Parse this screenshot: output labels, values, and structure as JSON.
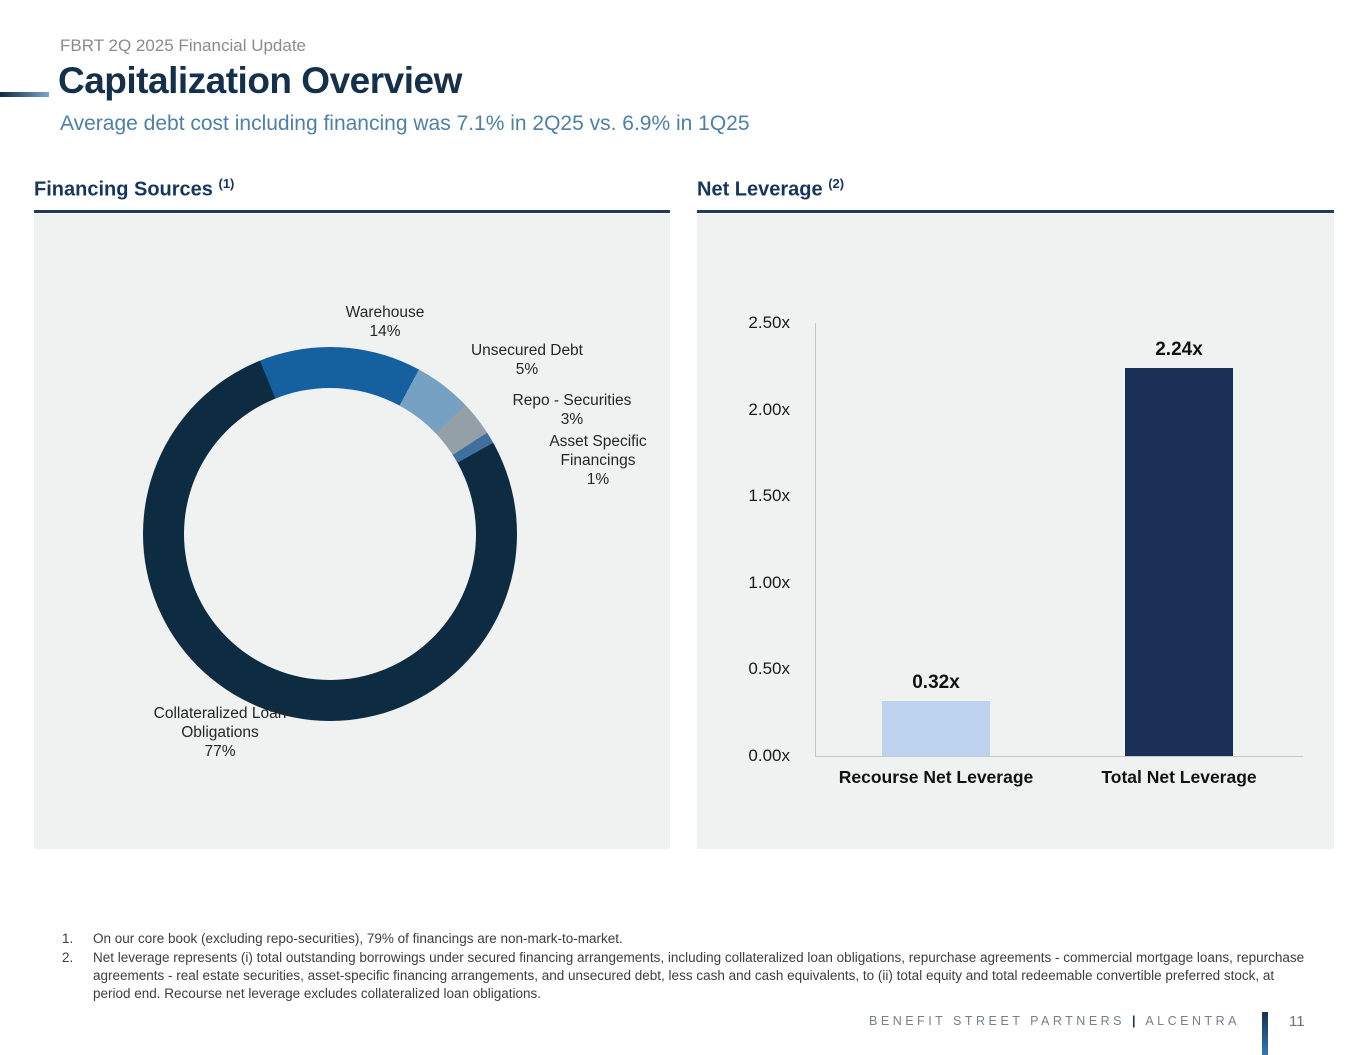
{
  "header": {
    "eyebrow": "FBRT 2Q 2025 Financial Update",
    "title": "Capitalization Overview",
    "subtitle": "Average debt cost including financing was 7.1% in 2Q25 vs. 6.9% in 1Q25"
  },
  "financing": {
    "heading": "Financing Sources",
    "footnote_ref": "(1)"
  },
  "leverage": {
    "heading": "Net Leverage",
    "footnote_ref": "(2)"
  },
  "chart_data": [
    {
      "type": "pie",
      "title": "Financing Sources",
      "donut": true,
      "rotation_deg": 338,
      "slices": [
        {
          "label": "Warehouse",
          "pct": 14,
          "pct_label": "14%",
          "color": "#1561a0"
        },
        {
          "label": "Unsecured Debt",
          "pct": 5,
          "pct_label": "5%",
          "color": "#76a1c2"
        },
        {
          "label": "Repo - Securities",
          "pct": 3,
          "pct_label": "3%",
          "color": "#93a0a7"
        },
        {
          "label": "Asset Specific Financings",
          "pct": 1,
          "pct_label": "1%",
          "color": "#3e6f9e"
        },
        {
          "label": "Collateralized Loan Obligations",
          "pct": 77,
          "pct_label": "77%",
          "color": "#0d2b41"
        }
      ]
    },
    {
      "type": "bar",
      "title": "Net Leverage",
      "categories": [
        "Recourse Net Leverage",
        "Total Net Leverage"
      ],
      "values": [
        0.32,
        2.24
      ],
      "value_labels": [
        "0.32x",
        "2.24x"
      ],
      "colors": [
        "#bed3f0",
        "#1a3056"
      ],
      "ylim": [
        0,
        2.5
      ],
      "yticks": [
        "2.50x",
        "2.00x",
        "1.50x",
        "1.00x",
        "0.50x",
        "0.00x"
      ],
      "grid": false,
      "legend": "none"
    }
  ],
  "footnotes": [
    {
      "num": "1.",
      "text": "On our core book (excluding repo-securities), 79% of financings are non-mark-to-market."
    },
    {
      "num": "2.",
      "text": "Net leverage represents (i) total outstanding borrowings under secured financing arrangements, including collateralized loan obligations, repurchase agreements - commercial mortgage loans, repurchase agreements - real estate securities, asset-specific financing arrangements, and unsecured debt, less cash and cash equivalents, to (ii) total equity and total redeemable convertible preferred stock, at period end. Recourse net leverage excludes collateralized loan obligations."
    }
  ],
  "footer": {
    "brand_left": "BENEFIT STREET PARTNERS",
    "separator": "|",
    "brand_right": "ALCENTRA",
    "page": "11"
  }
}
